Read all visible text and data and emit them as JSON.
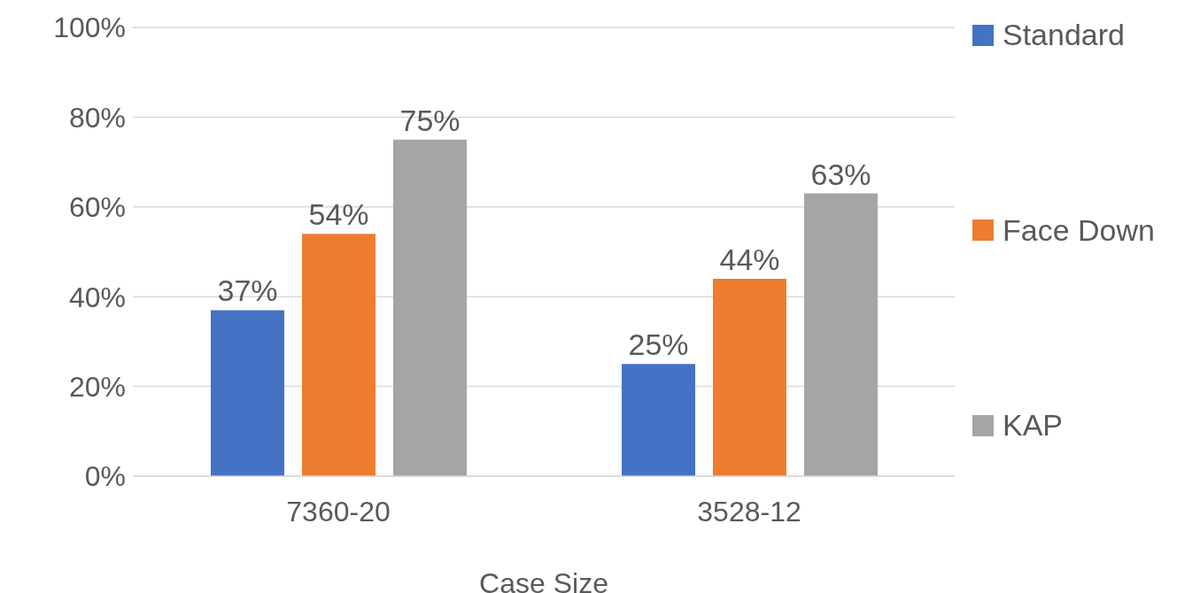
{
  "chart_data": {
    "type": "bar",
    "xlabel": "Case Size",
    "categories": [
      "7360-20",
      "3528-12"
    ],
    "series": [
      {
        "name": "Standard",
        "color": "#4472c4",
        "values": [
          37,
          25
        ],
        "value_labels": [
          "37%",
          "25%"
        ]
      },
      {
        "name": "Face Down",
        "color": "#ed7d31",
        "values": [
          54,
          44
        ],
        "value_labels": [
          "54%",
          "44%"
        ]
      },
      {
        "name": "KAP",
        "color": "#a5a5a5",
        "values": [
          75,
          63
        ],
        "value_labels": [
          "75%",
          "63%"
        ]
      }
    ],
    "ylim": [
      0,
      100
    ],
    "yticks": [
      {
        "value": 0,
        "label": "0%"
      },
      {
        "value": 20,
        "label": "20%"
      },
      {
        "value": 40,
        "label": "40%"
      },
      {
        "value": 60,
        "label": "60%"
      },
      {
        "value": 80,
        "label": "80%"
      },
      {
        "value": 100,
        "label": "100%"
      }
    ],
    "grid": "y",
    "legend": "right"
  }
}
